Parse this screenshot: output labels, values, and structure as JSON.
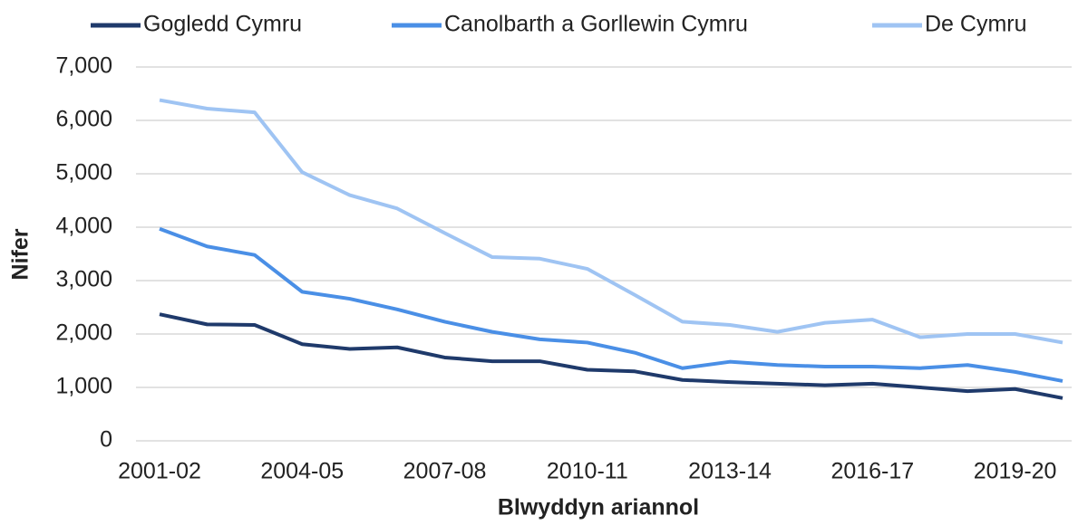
{
  "chart_data": {
    "type": "line",
    "x_label": "Blwyddyn ariannol",
    "y_label": "Nifer",
    "categories": [
      "2001-02",
      null,
      null,
      "2004-05",
      null,
      null,
      "2007-08",
      null,
      null,
      "2010-11",
      null,
      null,
      "2013-14",
      null,
      null,
      "2016-17",
      null,
      null,
      "2019-20",
      null
    ],
    "series": [
      {
        "name": "Gogledd Cymru",
        "color": "#1f3a6b",
        "values": [
          2370,
          2180,
          2170,
          1810,
          1720,
          1750,
          1560,
          1490,
          1490,
          1330,
          1300,
          1140,
          1100,
          1070,
          1040,
          1070,
          1000,
          930,
          970,
          800
        ]
      },
      {
        "name": "Canolbarth a Gorllewin Cymru",
        "color": "#4a8fe6",
        "values": [
          3970,
          3640,
          3480,
          2790,
          2660,
          2460,
          2230,
          2040,
          1900,
          1840,
          1650,
          1360,
          1480,
          1420,
          1390,
          1390,
          1360,
          1420,
          1290,
          1120
        ]
      },
      {
        "name": "De Cymru",
        "color": "#9fc4f3",
        "values": [
          6380,
          6220,
          6150,
          5030,
          4600,
          4350,
          3890,
          3440,
          3410,
          3220,
          2730,
          2230,
          2170,
          2040,
          2210,
          2270,
          1940,
          2000,
          2000,
          1840
        ]
      }
    ],
    "ylim": [
      0,
      7000
    ],
    "yticks": [
      0,
      {
        "value": 1000,
        "label": "1,000"
      },
      {
        "value": 2000,
        "label": "2,000"
      },
      {
        "value": 3000,
        "label": "3,000"
      },
      {
        "value": 4000,
        "label": "4,000"
      },
      {
        "value": 5000,
        "label": "5,000"
      },
      {
        "value": 6000,
        "label": "6,000"
      },
      {
        "value": 7000,
        "label": "7,000"
      }
    ],
    "grid": true,
    "legend": "top"
  }
}
